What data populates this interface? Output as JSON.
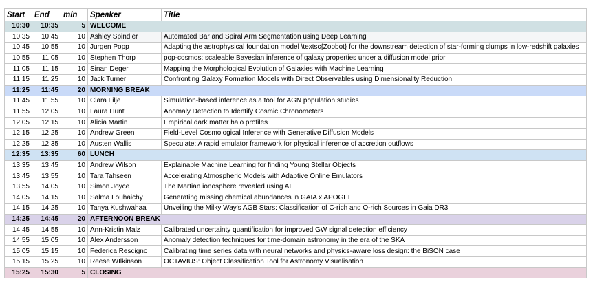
{
  "headers": [
    "Start",
    "End",
    "min",
    "Speaker",
    "Title"
  ],
  "break_colors": {
    "WELCOME": "#d0e0e3",
    "MORNING BREAK": "#c9daf8",
    "LUNCH": "#cfe2f3",
    "AFTERNOON BREAK": "#d9d2e9",
    "CLOSING": "#ead1dc"
  },
  "rows": [
    {
      "start": "10:30",
      "end": "10:35",
      "min": "5",
      "break": "WELCOME"
    },
    {
      "start": "10:35",
      "end": "10:45",
      "min": "10",
      "speaker": "Ashley Spindler",
      "title": "Automated Bar and Spiral Arm Segmentation using Deep Learning"
    },
    {
      "start": "10:45",
      "end": "10:55",
      "min": "10",
      "speaker": "Jurgen Popp",
      "title": "Adapting the astrophysical foundation model \\textsc{Zoobot} for the downstream detection of star-forming clumps in low-redshift galaxies"
    },
    {
      "start": "10:55",
      "end": "11:05",
      "min": "10",
      "speaker": "Stephen Thorp",
      "title": "pop-cosmos: scaleable Bayesian inference of galaxy properties under a diffusion model prior"
    },
    {
      "start": "11:05",
      "end": "11:15",
      "min": "10",
      "speaker": "Sinan Deger",
      "title": "Mapping the Morphological Evolution of Galaxies with Machine Learning"
    },
    {
      "start": "11:15",
      "end": "11:25",
      "min": "10",
      "speaker": "Jack Turner",
      "title": "Confronting Galaxy Formation Models with Direct Observables using Dimensionality Reduction"
    },
    {
      "start": "11:25",
      "end": "11:45",
      "min": "20",
      "break": "MORNING BREAK"
    },
    {
      "start": "11:45",
      "end": "11:55",
      "min": "10",
      "speaker": "Clara Lilje",
      "title": "Simulation-based inference as a tool for AGN population studies"
    },
    {
      "start": "11:55",
      "end": "12:05",
      "min": "10",
      "speaker": "Laura Hunt",
      "title": "Anomaly Detection to Identify Cosmic Chronometers"
    },
    {
      "start": "12:05",
      "end": "12:15",
      "min": "10",
      "speaker": "Alicia Martin",
      "title": "Empirical dark matter halo profiles"
    },
    {
      "start": "12:15",
      "end": "12:25",
      "min": "10",
      "speaker": "Andrew Green",
      "title": "Field-Level Cosmological Inference with Generative Diffusion Models"
    },
    {
      "start": "12:25",
      "end": "12:35",
      "min": "10",
      "speaker": "Austen Wallis",
      "title": "Speculate: A rapid emulator framework for physical inference of accretion outflows"
    },
    {
      "start": "12:35",
      "end": "13:35",
      "min": "60",
      "break": "LUNCH"
    },
    {
      "start": "13:35",
      "end": "13:45",
      "min": "10",
      "speaker": "Andrew Wilson",
      "title": "Explainable Machine Learning for finding Young Stellar Objects"
    },
    {
      "start": "13:45",
      "end": "13:55",
      "min": "10",
      "speaker": "Tara Tahseen",
      "title": "Accelerating Atmospheric Models with Adaptive Online Emulators"
    },
    {
      "start": "13:55",
      "end": "14:05",
      "min": "10",
      "speaker": "Simon Joyce",
      "title": "The Martian ionosphere revealed using AI"
    },
    {
      "start": "14:05",
      "end": "14:15",
      "min": "10",
      "speaker": "Salma Louhaichy",
      "title": "Generating missing chemical abundances in GAIA x APOGEE"
    },
    {
      "start": "14:15",
      "end": "14:25",
      "min": "10",
      "speaker": "Tanya Kushwahaa",
      "title": "Unveiling the Milky Way's AGB Stars: Classification of C-rich and O-rich Sources in Gaia DR3"
    },
    {
      "start": "14:25",
      "end": "14:45",
      "min": "20",
      "break": "AFTERNOON BREAK"
    },
    {
      "start": "14:45",
      "end": "14:55",
      "min": "10",
      "speaker": "Ann-Kristin Malz",
      "title": "Calibrated uncertainty quantification for improved GW signal detection efficiency"
    },
    {
      "start": "14:55",
      "end": "15:05",
      "min": "10",
      "speaker": "Alex Andersson",
      "title": "Anomaly detection techniques for time-domain astronomy in the era of the SKA"
    },
    {
      "start": "15:05",
      "end": "15:15",
      "min": "10",
      "speaker": "Federica Rescigno",
      "title": "Calibrating time series data with neural networks and physics-aware loss design: the BiSON case"
    },
    {
      "start": "15:15",
      "end": "15:25",
      "min": "10",
      "speaker": "Reese WIlkinson",
      "title": "OCTAVIUS: Object Classification Tool for Astronomy Visualisation"
    },
    {
      "start": "15:25",
      "end": "15:30",
      "min": "5",
      "break": "CLOSING"
    }
  ]
}
